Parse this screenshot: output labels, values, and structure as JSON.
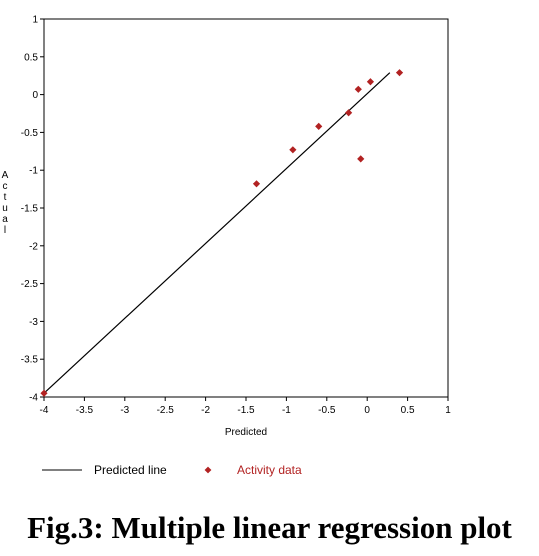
{
  "caption": "Fig.3: Multiple linear regression plot",
  "chart_data": {
    "type": "scatter",
    "xlabel": "Predicted",
    "ylabel": "Actual",
    "xlim": [
      -4,
      1
    ],
    "ylim": [
      -4,
      1
    ],
    "x_ticks": [
      -4,
      -3.5,
      -3,
      -2.5,
      -2,
      -1.5,
      -1,
      -0.5,
      0,
      0.5,
      1
    ],
    "y_ticks": [
      1,
      0.5,
      0,
      -0.5,
      -1,
      -1.5,
      -2,
      -2.5,
      -3,
      -3.5,
      -4
    ],
    "x_tick_labels": [
      "-4",
      "-3.5",
      "-3",
      "-2.5",
      "-2",
      "-1.5",
      "-1",
      "-0.5",
      "0",
      "0.5",
      "1"
    ],
    "y_tick_labels": [
      "1",
      "0.5",
      "0",
      "-0.5",
      "-1",
      "-1.5",
      "-2",
      "-2.5",
      "-3",
      "-3.5",
      "-4"
    ],
    "series": [
      {
        "name": "Predicted line",
        "kind": "line",
        "color": "#000000",
        "x": [
          -4.0,
          0.28
        ],
        "y": [
          -3.95,
          0.29
        ]
      },
      {
        "name": "Activity data",
        "kind": "marker",
        "color": "#b22222",
        "x": [
          -4.0,
          -1.37,
          -0.92,
          -0.6,
          -0.23,
          -0.11,
          -0.08,
          0.04,
          0.4
        ],
        "y": [
          -3.95,
          -1.18,
          -0.73,
          -0.42,
          -0.24,
          0.07,
          -0.85,
          0.17,
          0.29
        ]
      }
    ],
    "legend": [
      "Predicted line",
      "Activity data"
    ],
    "legend_placement": "bottom",
    "grid": false
  }
}
